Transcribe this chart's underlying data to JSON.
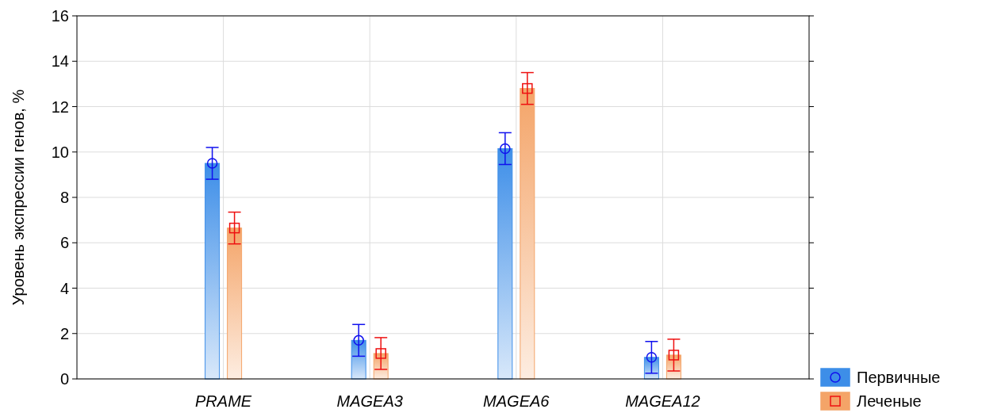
{
  "chart_data": {
    "type": "bar",
    "ylabel": "Уровень экспрессии генов, %",
    "categories": [
      "PRAME",
      "MAGEA3",
      "MAGEA6",
      "MAGEA12"
    ],
    "series": [
      {
        "name": "Первичные",
        "color": "#3d8ee8",
        "marker": "circle",
        "values": [
          9.5,
          1.7,
          10.15,
          0.95
        ]
      },
      {
        "name": "Леченые",
        "color": "#f4a468",
        "marker": "square",
        "values": [
          6.65,
          1.12,
          12.8,
          1.05
        ]
      },
      {
        "type": "scatter",
        "x": [
          "PRAME",
          "MAGEA3",
          "MAGEA6",
          "MAGEA12"
        ],
        "color": "#1010ee",
        "marker": "circle",
        "values": [
          9.5,
          1.7,
          10.15,
          0.95
        ],
        "errors": [
          0.7,
          0.7,
          0.7,
          0.7
        ]
      },
      {
        "type": "scatter",
        "x": [
          "PRAME",
          "MAGEA3",
          "MAGEA6",
          "MAGEA12"
        ],
        "color": "#ee1010",
        "marker": "square",
        "values": [
          6.65,
          1.12,
          12.8,
          1.05
        ],
        "errors": [
          0.7,
          0.7,
          0.7,
          0.7
        ]
      }
    ],
    "ylim": [
      0,
      16
    ],
    "yticks": [
      0,
      2,
      4,
      6,
      8,
      10,
      12,
      14,
      16
    ],
    "grid": true,
    "legend": "bottom right"
  }
}
